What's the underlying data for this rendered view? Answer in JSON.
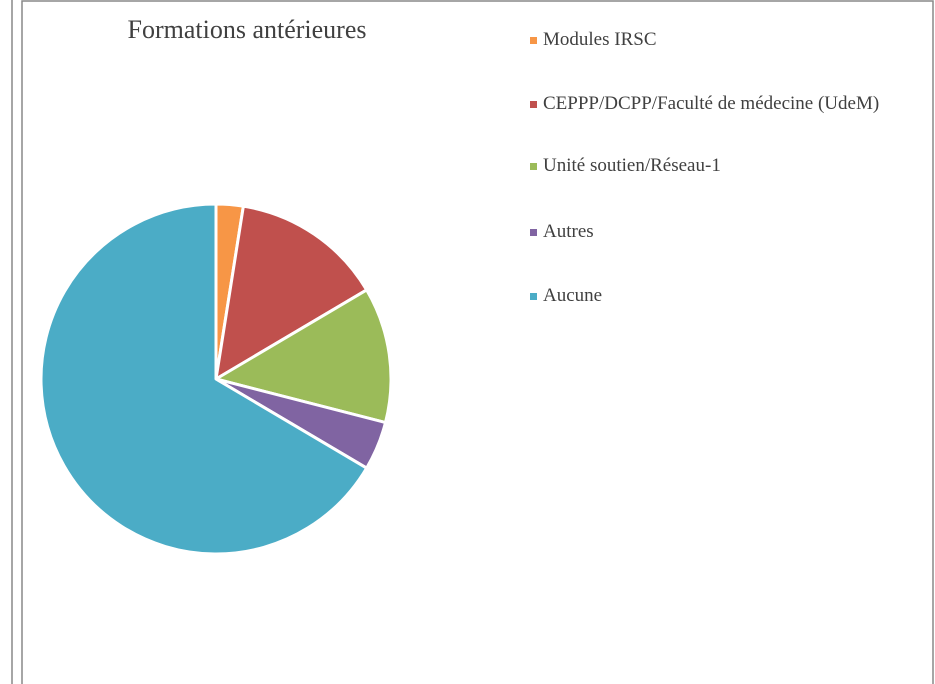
{
  "chart_data": {
    "type": "pie",
    "title": "Formations antérieures",
    "categories": [
      "Modules IRSC",
      "CEPPP/DCPP/Faculté de médecine (UdeM)",
      "Unité soutien/Réseau-1",
      "Autres",
      "Aucune"
    ],
    "values": [
      2.5,
      14,
      12.5,
      4.5,
      66.5
    ],
    "colors": [
      "#f79646",
      "#c0504d",
      "#9bbb59",
      "#8064a2",
      "#4bacc6"
    ],
    "legend": "right"
  }
}
